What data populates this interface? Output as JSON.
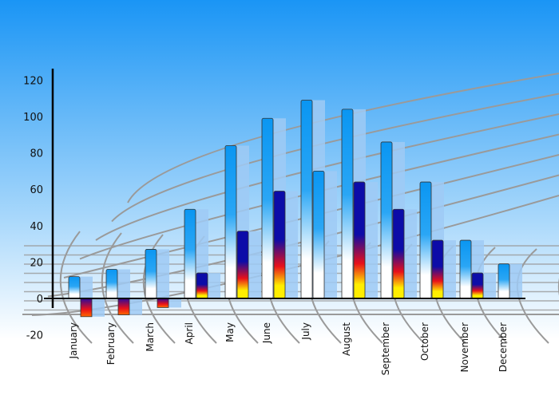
{
  "chart_data": {
    "type": "bar",
    "title": "",
    "xlabel": "",
    "ylabel": "",
    "ylim": [
      -20,
      120
    ],
    "yticks": [
      120,
      100,
      80,
      60,
      40,
      20,
      0,
      -20
    ],
    "grid": "decorative 3D floor grid",
    "legend": "none",
    "categories": [
      "January",
      "February",
      "March",
      "April",
      "May",
      "June",
      "July",
      "August",
      "September",
      "October",
      "November",
      "December"
    ],
    "series": [
      {
        "values": [
          12,
          16,
          27,
          49,
          84,
          99,
          109,
          104,
          86,
          64,
          32,
          19
        ],
        "color": "#0a96f2"
      },
      {
        "values": [
          -10,
          -9,
          -5,
          14,
          37,
          59,
          70,
          64,
          49,
          32,
          14,
          null
        ],
        "color": "#0c0ca8"
      }
    ],
    "colors": {
      "sky_top": "#1a95f5",
      "sky_bottom": "#ffffff",
      "grid": "#9a9a9a",
      "accent_red": "#e8101a",
      "accent_yellow": "#ffee00"
    }
  }
}
